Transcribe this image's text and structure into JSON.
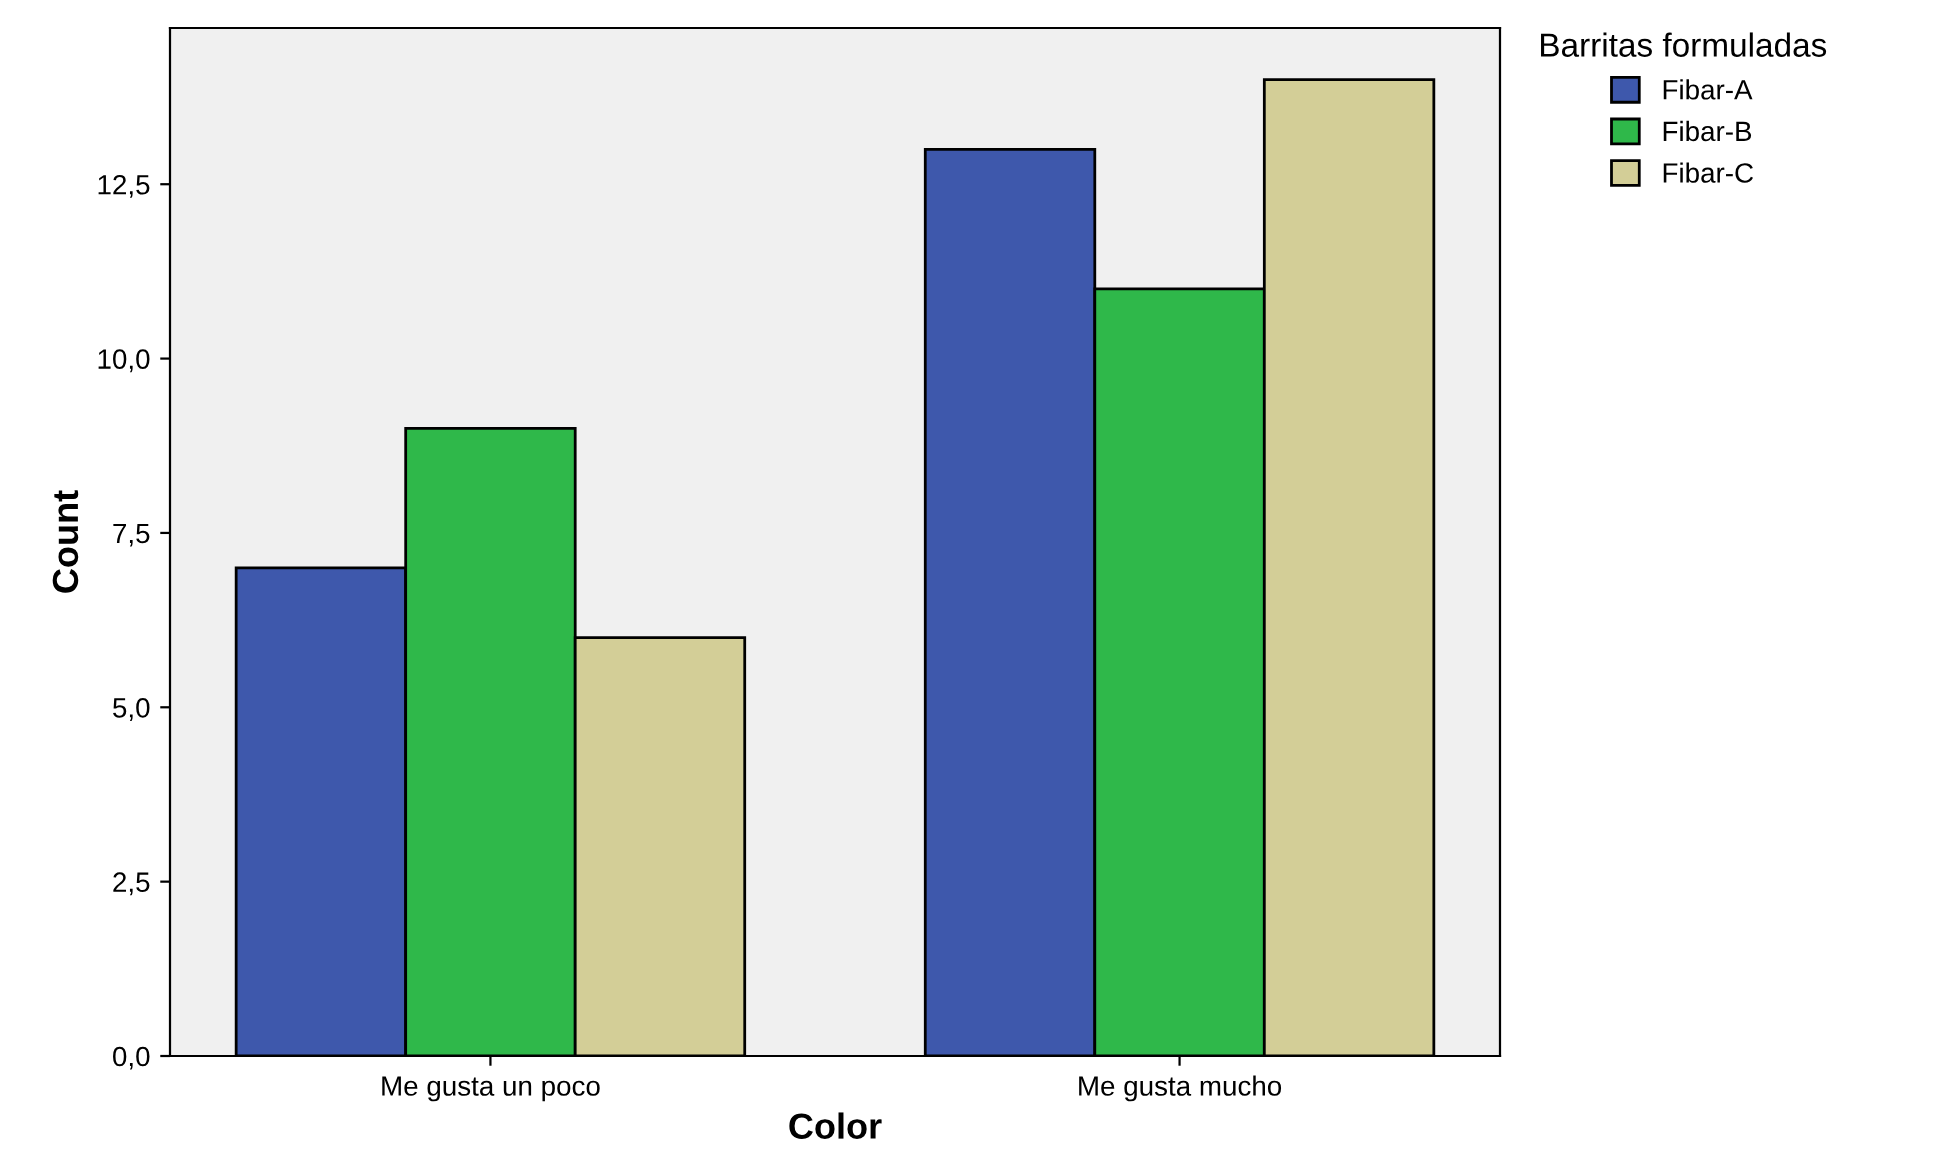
{
  "chart_data": {
    "type": "bar",
    "xlabel": "Color",
    "ylabel": "Count",
    "legend_title": "Barritas formuladas",
    "categories": [
      "Me gusta un poco",
      "Me gusta mucho"
    ],
    "series": [
      {
        "name": "Fibar-A",
        "color": "#3e58ac",
        "values": [
          7,
          13
        ]
      },
      {
        "name": "Fibar-B",
        "color": "#2fb84a",
        "values": [
          9,
          11
        ]
      },
      {
        "name": "Fibar-C",
        "color": "#d3ce97",
        "values": [
          6,
          14
        ]
      }
    ],
    "ylim": [
      0,
      14.74
    ],
    "yticks": [
      {
        "value": 0,
        "label": "0,0"
      },
      {
        "value": 2.5,
        "label": "2,5"
      },
      {
        "value": 5,
        "label": "5,0"
      },
      {
        "value": 7.5,
        "label": "7,5"
      },
      {
        "value": 10,
        "label": "10,0"
      },
      {
        "value": 12.5,
        "label": "12,5"
      }
    ],
    "grid": false,
    "legend": "top right"
  }
}
